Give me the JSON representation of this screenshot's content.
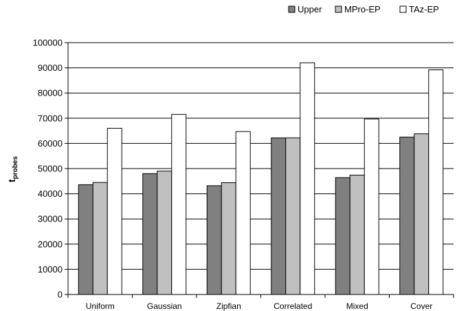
{
  "chart_data": {
    "type": "bar",
    "categories": [
      "Uniform",
      "Gaussian",
      "Zipfian",
      "Correlated",
      "Mixed",
      "Cover"
    ],
    "series": [
      {
        "name": "Upper",
        "color": "#808080",
        "values": [
          43600,
          48000,
          43200,
          62200,
          46400,
          62500
        ]
      },
      {
        "name": "MPro-EP",
        "color": "#c0c0c0",
        "values": [
          44500,
          49000,
          44400,
          62200,
          47400,
          63800
        ]
      },
      {
        "name": "TAz-EP",
        "color": "#ffffff",
        "values": [
          66000,
          71500,
          64700,
          92000,
          69700,
          89200
        ]
      }
    ],
    "ylabel_main": "t",
    "ylabel_sub": "probes",
    "ylim": [
      0,
      100000
    ],
    "yticks": [
      "0",
      "10000",
      "20000",
      "30000",
      "40000",
      "50000",
      "60000",
      "70000",
      "80000",
      "90000",
      "100000"
    ],
    "grid": true,
    "legend_position": "top-right"
  }
}
